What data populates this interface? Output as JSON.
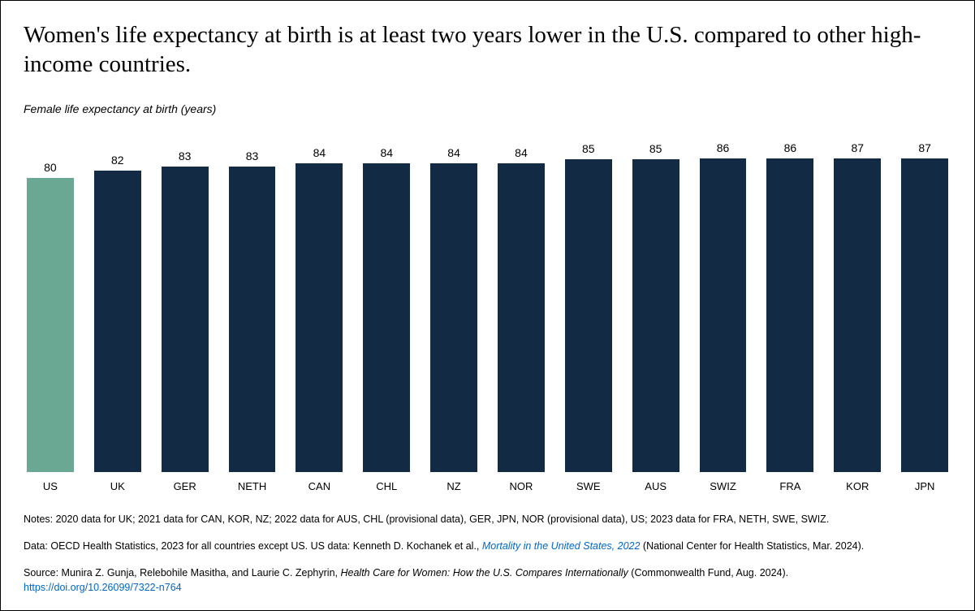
{
  "title": "Women's life expectancy at birth is at least two years lower in the U.S. compared to other high-income countries.",
  "subtitle": "Female life expectancy at birth (years)",
  "chart": {
    "type": "bar",
    "ylim": [
      0,
      90
    ],
    "bar_default_color": "#132a45",
    "highlight_color": "#6aa893",
    "background_color": "#ffffff",
    "value_fontsize": 14,
    "label_fontsize": 13,
    "bars": [
      {
        "label": "US",
        "value": 80,
        "color": "#6aa893"
      },
      {
        "label": "UK",
        "value": 82,
        "color": "#132a45"
      },
      {
        "label": "GER",
        "value": 83,
        "color": "#132a45"
      },
      {
        "label": "NETH",
        "value": 83,
        "color": "#132a45"
      },
      {
        "label": "CAN",
        "value": 84,
        "color": "#132a45"
      },
      {
        "label": "CHL",
        "value": 84,
        "color": "#132a45"
      },
      {
        "label": "NZ",
        "value": 84,
        "color": "#132a45"
      },
      {
        "label": "NOR",
        "value": 84,
        "color": "#132a45"
      },
      {
        "label": "SWE",
        "value": 85,
        "color": "#132a45"
      },
      {
        "label": "AUS",
        "value": 85,
        "color": "#132a45"
      },
      {
        "label": "SWIZ",
        "value": 86,
        "color": "#132a45"
      },
      {
        "label": "FRA",
        "value": 86,
        "color": "#132a45"
      },
      {
        "label": "KOR",
        "value": 87,
        "color": "#132a45"
      },
      {
        "label": "JPN",
        "value": 87,
        "color": "#132a45"
      }
    ]
  },
  "notes": {
    "line1": "Notes: 2020 data for UK; 2021 data for CAN, KOR, NZ; 2022 data for AUS, CHL (provisional data), GER, JPN, NOR (provisional data), US; 2023 data for FRA, NETH, SWE, SWIZ.",
    "line2_prefix": "Data: OECD Health Statistics, 2023 for all countries except US. US data: Kenneth D. Kochanek et al., ",
    "line2_link": "Mortality in the United States, 2022",
    "line2_suffix": " (National Center for Health Statistics, Mar. 2024).",
    "line3_prefix": "Source: Munira Z. Gunja, Relebohile Masitha, and Laurie C. Zephyrin, ",
    "line3_italic": "Health Care for Women: How the U.S. Compares Internationally",
    "line3_suffix": " (Commonwealth Fund, Aug. 2024).",
    "line3_url": "https://doi.org/10.26099/7322-n764"
  }
}
